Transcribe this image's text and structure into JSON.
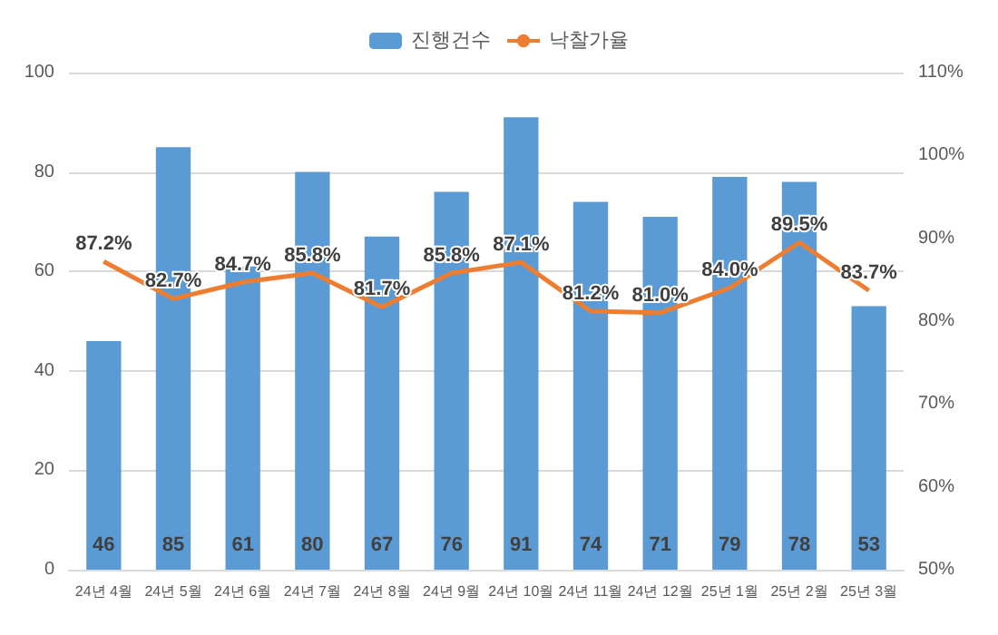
{
  "chart_data": {
    "type": "bar",
    "categories": [
      "24년 4월",
      "24년 5월",
      "24년 6월",
      "24년 7월",
      "24년 8월",
      "24년 9월",
      "24년 10월",
      "24년 11월",
      "24년 12월",
      "25년 1월",
      "25년 2월",
      "25년 3월"
    ],
    "series": [
      {
        "name": "진행건수",
        "color": "#5b9bd5",
        "values": [
          46,
          85,
          61,
          80,
          67,
          76,
          91,
          74,
          71,
          79,
          78,
          53
        ],
        "value_labels": [
          "46",
          "85",
          "61",
          "80",
          "67",
          "76",
          "91",
          "74",
          "71",
          "79",
          "78",
          "53"
        ]
      },
      {
        "name": "낙찰가율",
        "type": "line",
        "axis": "y2",
        "color": "#ed7d31",
        "marker": "none",
        "line_style": "solid",
        "values": [
          87.2,
          82.7,
          84.7,
          85.8,
          81.7,
          85.8,
          87.1,
          81.2,
          81.0,
          84.0,
          89.5,
          83.7
        ],
        "value_labels": [
          "87.2%",
          "82.7%",
          "84.7%",
          "85.8%",
          "81.7%",
          "85.8%",
          "87.1%",
          "81.2%",
          "81.0%",
          "84.0%",
          "89.5%",
          "83.7%"
        ]
      }
    ],
    "ylim": [
      0,
      100
    ],
    "yticks": [
      0,
      20,
      40,
      60,
      80,
      100
    ],
    "y2lim": [
      50,
      110
    ],
    "y2ticks": [
      {
        "value": 50,
        "label": "50%"
      },
      {
        "value": 60,
        "label": "60%"
      },
      {
        "value": 70,
        "label": "70%"
      },
      {
        "value": 80,
        "label": "80%"
      },
      {
        "value": 90,
        "label": "90%"
      },
      {
        "value": 100,
        "label": "100%"
      },
      {
        "value": 110,
        "label": "110%"
      }
    ],
    "grid": "y",
    "legend": "top"
  }
}
